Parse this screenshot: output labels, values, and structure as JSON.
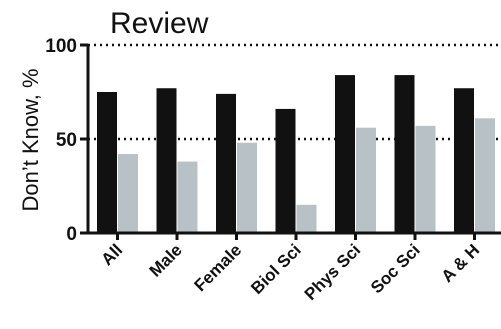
{
  "chart_data": {
    "type": "bar",
    "title": "Review",
    "xlabel": "",
    "ylabel": "Don’t Know, %",
    "ylim": [
      0,
      100
    ],
    "yticks": [
      "0",
      "50",
      "100"
    ],
    "reference_lines": [
      50,
      100
    ],
    "categories": [
      "All",
      "Male",
      "Female",
      "Biol Sci",
      "Phys Sci",
      "Soc Sci",
      "A & H"
    ],
    "series": [
      {
        "color": "#111111",
        "values": [
          75,
          77,
          74,
          66,
          84,
          84,
          77
        ]
      },
      {
        "color": "#b8c2c6",
        "values": [
          42,
          38,
          48,
          15,
          56,
          57,
          61
        ]
      }
    ],
    "grid": false,
    "legend": "none"
  }
}
